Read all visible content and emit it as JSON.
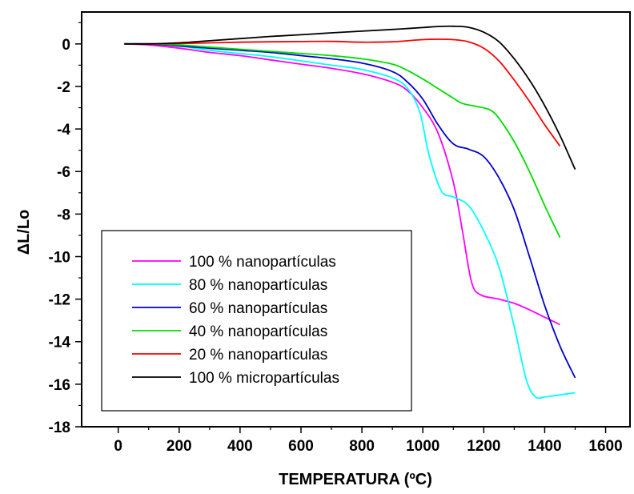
{
  "chart_data": {
    "type": "line",
    "xlabel": "TEMPERATURA (ºC)",
    "ylabel": "ΔL/Lo",
    "xlim": [
      -120,
      1680
    ],
    "ylim": [
      -18,
      1.5
    ],
    "x_ticks": [
      "0",
      "200",
      "400",
      "600",
      "800",
      "1000",
      "1200",
      "1400",
      "1600"
    ],
    "x_tick_values": [
      0,
      200,
      400,
      600,
      800,
      1000,
      1200,
      1400,
      1600
    ],
    "y_ticks": [
      "0",
      "-2",
      "-4",
      "-6",
      "-8",
      "-10",
      "-12",
      "-14",
      "-16",
      "-18"
    ],
    "y_tick_values": [
      0,
      -2,
      -4,
      -6,
      -8,
      -10,
      -12,
      -14,
      -16,
      -18
    ],
    "grid": false,
    "legend_position": "bottom-left",
    "series": [
      {
        "name": "100 % nanopartículas",
        "color": "#ff00ff",
        "points": [
          [
            20,
            0
          ],
          [
            100,
            -0.05
          ],
          [
            200,
            -0.2
          ],
          [
            300,
            -0.4
          ],
          [
            400,
            -0.55
          ],
          [
            500,
            -0.75
          ],
          [
            600,
            -0.95
          ],
          [
            700,
            -1.15
          ],
          [
            800,
            -1.4
          ],
          [
            900,
            -1.8
          ],
          [
            950,
            -2.2
          ],
          [
            1000,
            -3.0
          ],
          [
            1050,
            -4.2
          ],
          [
            1100,
            -6.5
          ],
          [
            1130,
            -8.8
          ],
          [
            1160,
            -11.2
          ],
          [
            1190,
            -11.8
          ],
          [
            1250,
            -12.0
          ],
          [
            1300,
            -12.2
          ],
          [
            1350,
            -12.5
          ],
          [
            1400,
            -12.85
          ],
          [
            1450,
            -13.2
          ]
        ]
      },
      {
        "name": "80 % nanopartículas",
        "color": "#00ffff",
        "points": [
          [
            20,
            0
          ],
          [
            100,
            0
          ],
          [
            200,
            -0.1
          ],
          [
            300,
            -0.3
          ],
          [
            400,
            -0.45
          ],
          [
            500,
            -0.6
          ],
          [
            600,
            -0.8
          ],
          [
            700,
            -1.0
          ],
          [
            800,
            -1.2
          ],
          [
            900,
            -1.6
          ],
          [
            950,
            -2.1
          ],
          [
            990,
            -3.2
          ],
          [
            1020,
            -5.2
          ],
          [
            1060,
            -6.9
          ],
          [
            1100,
            -7.2
          ],
          [
            1150,
            -7.6
          ],
          [
            1200,
            -8.8
          ],
          [
            1250,
            -10.5
          ],
          [
            1300,
            -13.3
          ],
          [
            1340,
            -15.8
          ],
          [
            1370,
            -16.6
          ],
          [
            1400,
            -16.6
          ],
          [
            1450,
            -16.5
          ],
          [
            1500,
            -16.4
          ]
        ]
      },
      {
        "name": "60 % nanopartículas",
        "color": "#0000cc",
        "points": [
          [
            20,
            0
          ],
          [
            100,
            0
          ],
          [
            200,
            -0.1
          ],
          [
            300,
            -0.2
          ],
          [
            400,
            -0.3
          ],
          [
            500,
            -0.4
          ],
          [
            600,
            -0.55
          ],
          [
            700,
            -0.7
          ],
          [
            800,
            -0.9
          ],
          [
            900,
            -1.3
          ],
          [
            950,
            -1.8
          ],
          [
            1000,
            -2.6
          ],
          [
            1050,
            -3.8
          ],
          [
            1100,
            -4.7
          ],
          [
            1150,
            -4.95
          ],
          [
            1200,
            -5.3
          ],
          [
            1250,
            -6.3
          ],
          [
            1300,
            -7.8
          ],
          [
            1350,
            -10.0
          ],
          [
            1400,
            -12.3
          ],
          [
            1450,
            -14.2
          ],
          [
            1500,
            -15.7
          ]
        ]
      },
      {
        "name": "40 % nanopartículas",
        "color": "#00dd00",
        "points": [
          [
            20,
            0
          ],
          [
            100,
            0
          ],
          [
            200,
            -0.05
          ],
          [
            300,
            -0.15
          ],
          [
            400,
            -0.25
          ],
          [
            500,
            -0.35
          ],
          [
            600,
            -0.45
          ],
          [
            700,
            -0.55
          ],
          [
            800,
            -0.7
          ],
          [
            900,
            -0.95
          ],
          [
            950,
            -1.25
          ],
          [
            1000,
            -1.65
          ],
          [
            1050,
            -2.1
          ],
          [
            1100,
            -2.55
          ],
          [
            1130,
            -2.8
          ],
          [
            1180,
            -2.95
          ],
          [
            1220,
            -3.1
          ],
          [
            1250,
            -3.5
          ],
          [
            1300,
            -4.6
          ],
          [
            1350,
            -6.0
          ],
          [
            1400,
            -7.6
          ],
          [
            1450,
            -9.1
          ]
        ]
      },
      {
        "name": "20 % nanopartículas",
        "color": "#ff0000",
        "points": [
          [
            20,
            0
          ],
          [
            100,
            0
          ],
          [
            200,
            0.02
          ],
          [
            300,
            0.05
          ],
          [
            400,
            0.08
          ],
          [
            500,
            0.1
          ],
          [
            600,
            0.11
          ],
          [
            700,
            0.12
          ],
          [
            800,
            0.08
          ],
          [
            900,
            0.1
          ],
          [
            950,
            0.15
          ],
          [
            1000,
            0.2
          ],
          [
            1050,
            0.22
          ],
          [
            1100,
            0.2
          ],
          [
            1150,
            0.1
          ],
          [
            1200,
            -0.2
          ],
          [
            1250,
            -0.8
          ],
          [
            1300,
            -1.7
          ],
          [
            1350,
            -2.7
          ],
          [
            1400,
            -3.8
          ],
          [
            1450,
            -4.8
          ]
        ]
      },
      {
        "name": "100 % micropartículas",
        "color": "#000000",
        "points": [
          [
            20,
            0
          ],
          [
            100,
            0
          ],
          [
            200,
            0.05
          ],
          [
            300,
            0.15
          ],
          [
            400,
            0.25
          ],
          [
            500,
            0.35
          ],
          [
            600,
            0.43
          ],
          [
            700,
            0.52
          ],
          [
            800,
            0.6
          ],
          [
            900,
            0.68
          ],
          [
            1000,
            0.77
          ],
          [
            1050,
            0.82
          ],
          [
            1100,
            0.83
          ],
          [
            1150,
            0.78
          ],
          [
            1200,
            0.55
          ],
          [
            1250,
            0.1
          ],
          [
            1300,
            -0.7
          ],
          [
            1350,
            -1.7
          ],
          [
            1400,
            -2.9
          ],
          [
            1450,
            -4.3
          ],
          [
            1500,
            -5.9
          ]
        ]
      }
    ]
  }
}
